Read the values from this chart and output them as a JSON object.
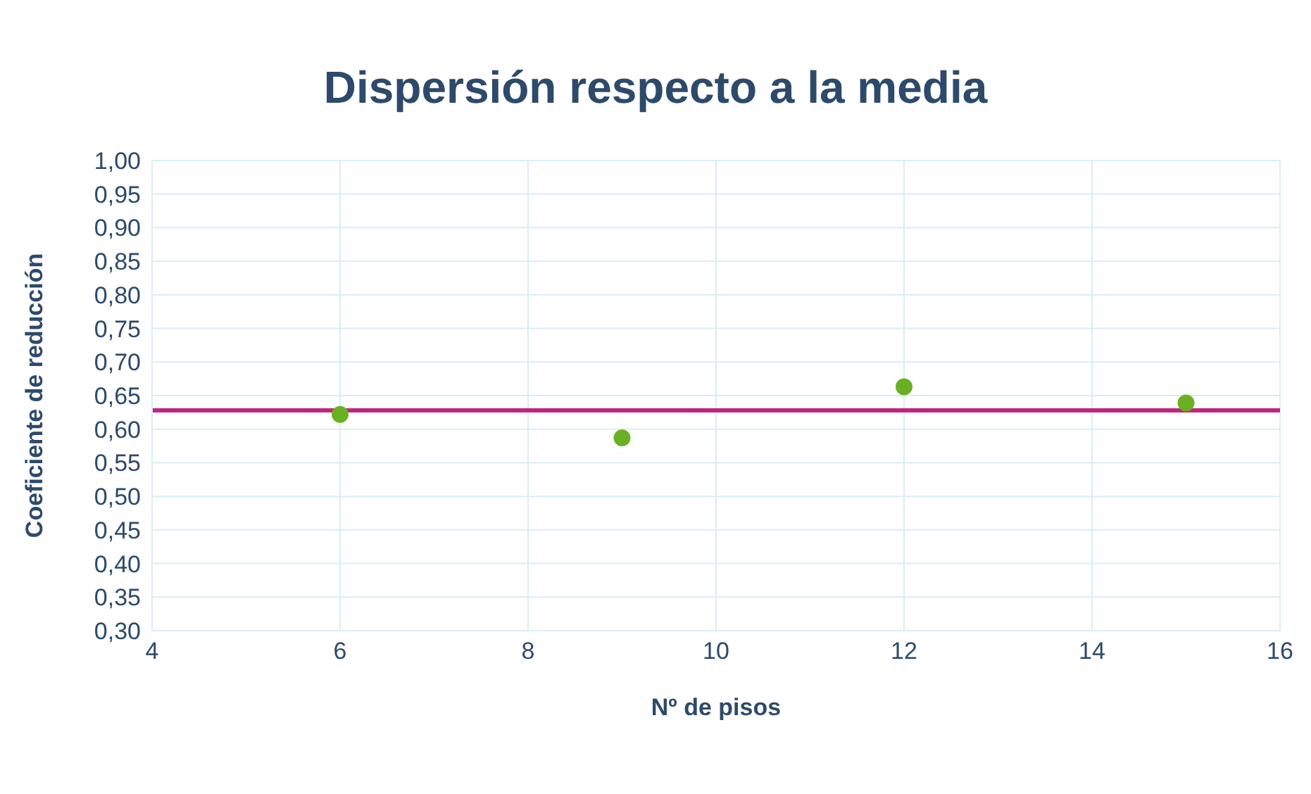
{
  "chart_data": {
    "type": "scatter",
    "title": "Dispersión respecto a la media",
    "xlabel": "Nº de pisos",
    "ylabel": "Coeficiente de reducción",
    "x": [
      6,
      9,
      12,
      15
    ],
    "series": [
      {
        "color": "#6ab023",
        "values": [
          0.622,
          0.587,
          0.663,
          0.639
        ]
      }
    ],
    "ref_lines": [
      {
        "axis": "y",
        "value": 0.628,
        "color": "#c0267e",
        "line_style": "solid"
      }
    ],
    "xlim": [
      4,
      16
    ],
    "xticks": [
      4,
      6,
      8,
      10,
      12,
      14,
      16
    ],
    "ylim": [
      0.3,
      1
    ],
    "yticks": [
      {
        "value": 0.3,
        "label": "0,30"
      },
      {
        "value": 0.35,
        "label": "0,35"
      },
      {
        "value": 0.4,
        "label": "0,40"
      },
      {
        "value": 0.45,
        "label": "0,45"
      },
      {
        "value": 0.5,
        "label": "0,50"
      },
      {
        "value": 0.55,
        "label": "0,55"
      },
      {
        "value": 0.6,
        "label": "0,60"
      },
      {
        "value": 0.65,
        "label": "0,65"
      },
      {
        "value": 0.7,
        "label": "0,70"
      },
      {
        "value": 0.75,
        "label": "0,75"
      },
      {
        "value": 0.8,
        "label": "0,80"
      },
      {
        "value": 0.85,
        "label": "0,85"
      },
      {
        "value": 0.9,
        "label": "0,90"
      },
      {
        "value": 0.95,
        "label": "0,95"
      },
      {
        "value": 1,
        "label": "1,00"
      }
    ],
    "grid": true,
    "marker": "circle",
    "legend": false
  }
}
